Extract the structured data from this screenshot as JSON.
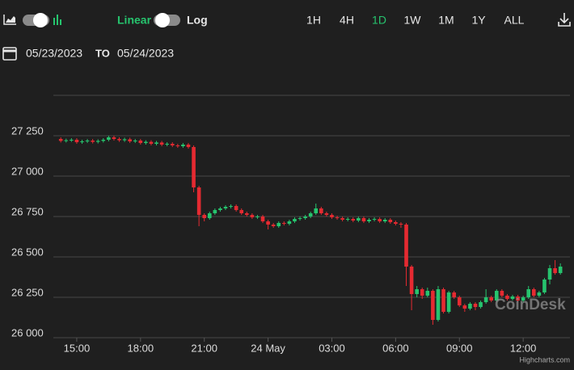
{
  "toolbar": {
    "scale_linear": "Linear",
    "scale_log": "Log",
    "ranges": [
      "1H",
      "4H",
      "1D",
      "1W",
      "1M",
      "1Y",
      "ALL"
    ],
    "active_range": 2,
    "date_from": "05/23/2023",
    "date_sep": "TO",
    "date_to": "05/24/2023"
  },
  "chart_data": {
    "type": "candlestick",
    "up_color": "#26c46e",
    "down_color": "#e52a31",
    "grid": true,
    "watermark": "CoinDesk",
    "credit": "Highcharts.com",
    "xlim": [
      13.9,
      38.2
    ],
    "xticks": [
      {
        "value": 15,
        "label": "15:00"
      },
      {
        "value": 18,
        "label": "18:00"
      },
      {
        "value": 21,
        "label": "21:00"
      },
      {
        "value": 24,
        "label": "24 May"
      },
      {
        "value": 27,
        "label": "03:00"
      },
      {
        "value": 30,
        "label": "06:00"
      },
      {
        "value": 33,
        "label": "09:00"
      },
      {
        "value": 36,
        "label": "12:00"
      }
    ],
    "ylim": [
      26000,
      27500
    ],
    "yticks": [
      {
        "value": 26000,
        "label": "26 000"
      },
      {
        "value": 26250,
        "label": "26 250"
      },
      {
        "value": 26500,
        "label": "26 500"
      },
      {
        "value": 26750,
        "label": "26 750"
      },
      {
        "value": 27000,
        "label": "27 000"
      },
      {
        "value": 27250,
        "label": "27 250"
      }
    ],
    "x": [
      14.25,
      14.5,
      14.75,
      15,
      15.25,
      15.5,
      15.75,
      16,
      16.25,
      16.5,
      16.75,
      17,
      17.25,
      17.5,
      17.75,
      18,
      18.25,
      18.5,
      18.75,
      19,
      19.25,
      19.5,
      19.75,
      20,
      20.25,
      20.5,
      20.75,
      21,
      21.25,
      21.5,
      21.75,
      22,
      22.25,
      22.5,
      22.75,
      23,
      23.25,
      23.5,
      23.75,
      24,
      24.25,
      24.5,
      24.75,
      25,
      25.25,
      25.5,
      25.75,
      26,
      26.25,
      26.5,
      26.75,
      27,
      27.25,
      27.5,
      27.75,
      28,
      28.25,
      28.5,
      28.75,
      29,
      29.25,
      29.5,
      29.75,
      30,
      30.25,
      30.5,
      30.75,
      31,
      31.25,
      31.5,
      31.75,
      32,
      32.25,
      32.5,
      32.75,
      33,
      33.25,
      33.5,
      33.75,
      34,
      34.25,
      34.5,
      34.75,
      35,
      35.25,
      35.5,
      35.75,
      36,
      36.25,
      36.5,
      36.75,
      37,
      37.25,
      37.5,
      37.75
    ],
    "open": [
      27230,
      27218,
      27222,
      27225,
      27210,
      27215,
      27220,
      27212,
      27218,
      27225,
      27240,
      27230,
      27222,
      27228,
      27215,
      27220,
      27205,
      27212,
      27200,
      27208,
      27195,
      27200,
      27190,
      27185,
      27195,
      27180,
      26930,
      26760,
      26740,
      26770,
      26790,
      26800,
      26810,
      26815,
      26790,
      26770,
      26760,
      26745,
      26750,
      26720,
      26700,
      26690,
      26710,
      26705,
      26720,
      26735,
      26740,
      26750,
      26770,
      26800,
      26770,
      26760,
      26745,
      26740,
      26730,
      26735,
      26725,
      26740,
      26720,
      26730,
      26735,
      26720,
      26730,
      26715,
      26705,
      26700,
      26440,
      26270,
      26300,
      26260,
      26290,
      26110,
      26300,
      26160,
      26280,
      26250,
      26200,
      26180,
      26210,
      26190,
      26220,
      26250,
      26230,
      26290,
      26260,
      26240,
      26255,
      26230,
      26250,
      26300,
      26260,
      26280,
      26360,
      26430,
      26400
    ],
    "high": [
      27240,
      27232,
      27235,
      27235,
      27225,
      27230,
      27230,
      27228,
      27235,
      27250,
      27250,
      27240,
      27238,
      27238,
      27230,
      27230,
      27222,
      27222,
      27218,
      27218,
      27210,
      27210,
      27200,
      27205,
      27205,
      27190,
      26940,
      26770,
      26780,
      26800,
      26810,
      26820,
      26825,
      26825,
      26800,
      26780,
      26770,
      26760,
      26760,
      26730,
      26710,
      26720,
      26720,
      26730,
      26745,
      26750,
      26760,
      26780,
      26830,
      26810,
      26780,
      26770,
      26755,
      26750,
      26745,
      26745,
      26750,
      26750,
      26740,
      26745,
      26745,
      26740,
      26740,
      26725,
      26715,
      26710,
      26450,
      26320,
      26310,
      26310,
      26300,
      26320,
      26310,
      26290,
      26290,
      26260,
      26210,
      26220,
      26220,
      26230,
      26300,
      26260,
      26300,
      26300,
      26270,
      26265,
      26265,
      26260,
      26320,
      26310,
      26290,
      26370,
      26450,
      26480,
      26460
    ],
    "low": [
      27208,
      27208,
      27212,
      27200,
      27200,
      27205,
      27202,
      27202,
      27208,
      27215,
      27220,
      27212,
      27212,
      27205,
      27205,
      27195,
      27195,
      27190,
      27190,
      27185,
      27185,
      27180,
      27175,
      27175,
      27170,
      26900,
      26690,
      26720,
      26730,
      26760,
      26780,
      26790,
      26800,
      26780,
      26760,
      26750,
      26735,
      26735,
      26710,
      26670,
      26680,
      26680,
      26695,
      26695,
      26710,
      26725,
      26730,
      26740,
      26760,
      26760,
      26750,
      26735,
      26730,
      26720,
      26720,
      26715,
      26715,
      26710,
      26710,
      26720,
      26710,
      26710,
      26705,
      26695,
      26680,
      26320,
      26170,
      26250,
      26240,
      26250,
      26080,
      26100,
      26150,
      26150,
      26240,
      26190,
      26160,
      26170,
      26170,
      26180,
      26210,
      26220,
      26220,
      26250,
      26230,
      26230,
      26220,
      26220,
      26240,
      26250,
      26250,
      26270,
      26330,
      26390,
      26390
    ],
    "close": [
      27218,
      27222,
      27225,
      27210,
      27215,
      27220,
      27212,
      27218,
      27225,
      27240,
      27230,
      27222,
      27228,
      27215,
      27220,
      27205,
      27212,
      27200,
      27208,
      27195,
      27200,
      27190,
      27185,
      27195,
      27180,
      26930,
      26760,
      26740,
      26770,
      26790,
      26800,
      26810,
      26815,
      26790,
      26770,
      26760,
      26745,
      26750,
      26720,
      26700,
      26690,
      26710,
      26705,
      26720,
      26735,
      26740,
      26750,
      26770,
      26800,
      26770,
      26760,
      26745,
      26740,
      26730,
      26735,
      26725,
      26740,
      26720,
      26730,
      26735,
      26720,
      26730,
      26715,
      26705,
      26700,
      26440,
      26270,
      26300,
      26260,
      26290,
      26110,
      26300,
      26160,
      26280,
      26250,
      26200,
      26180,
      26210,
      26190,
      26220,
      26250,
      26230,
      26290,
      26260,
      26240,
      26255,
      26230,
      26250,
      26300,
      26260,
      26280,
      26360,
      26430,
      26400,
      26440
    ]
  }
}
